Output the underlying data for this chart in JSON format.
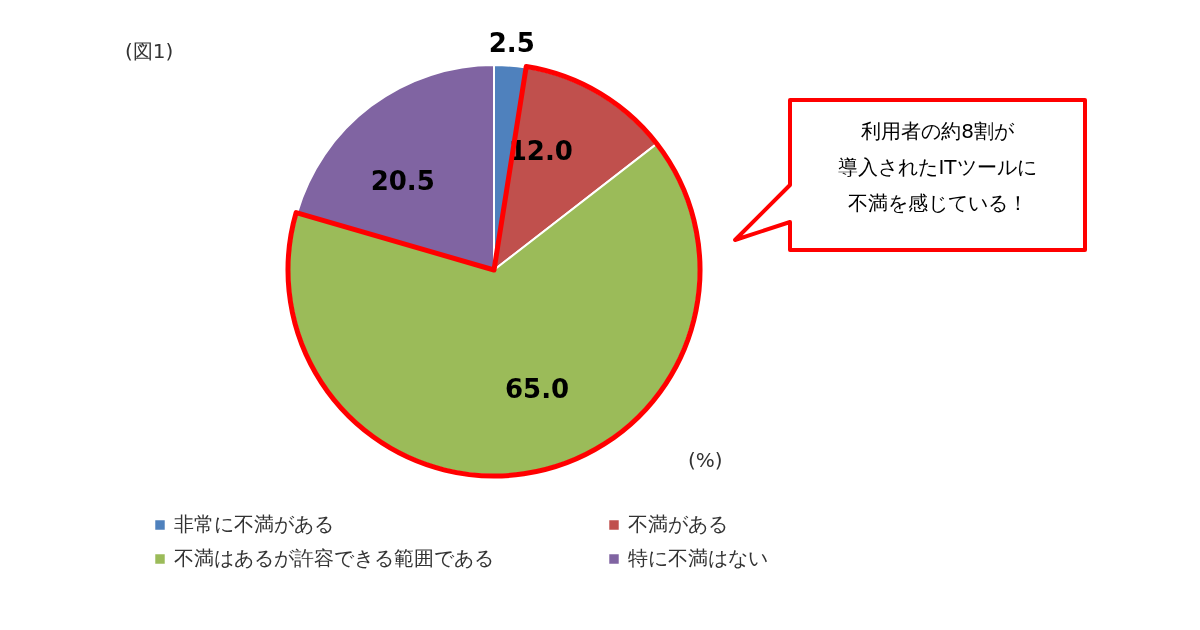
{
  "chart_data": {
    "type": "pie",
    "categories": [
      "非常に不満がある",
      "不満がある",
      "不満はあるが許容できる範囲である",
      "特に不満はない"
    ],
    "values": [
      2.5,
      12.0,
      65.0,
      20.5
    ],
    "colors": [
      "#4f81bd",
      "#c0504d",
      "#9bbb59",
      "#8064a2"
    ],
    "value_labels": [
      "2.5",
      "12.0",
      "65.0",
      "20.5"
    ],
    "legend": "bottom",
    "annotations": [
      "(図1)",
      "(%)",
      "利用者の約8割が",
      "導入されたITツールに",
      "不満を感じている！"
    ]
  }
}
